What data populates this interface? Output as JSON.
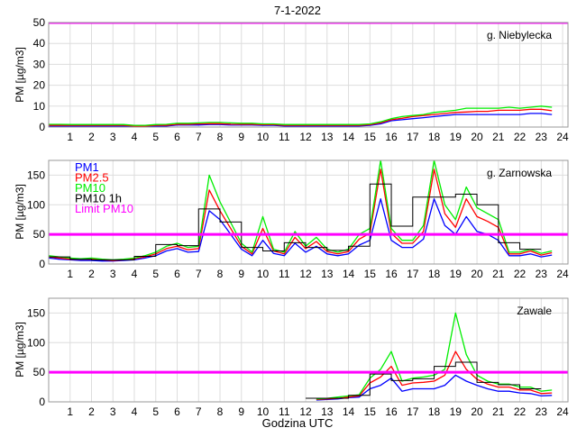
{
  "chart_data": [
    {
      "type": "line",
      "title": "7-1-2022",
      "station": "g. Niebylecka",
      "ylabel": "PM [µg/m3]",
      "xlabel": "",
      "xlim": [
        0,
        24.25
      ],
      "ylim": [
        0,
        50
      ],
      "yticks": [
        0,
        10,
        20,
        30,
        40,
        50
      ],
      "xticks": [
        1,
        2,
        3,
        4,
        5,
        6,
        7,
        8,
        9,
        10,
        11,
        12,
        13,
        14,
        15,
        16,
        17,
        18,
        19,
        20,
        21,
        22,
        23,
        24
      ],
      "grid": true,
      "limit": 50,
      "x_step_hours": 0.5,
      "series": [
        {
          "name": "PM1",
          "color": "#0000ff",
          "values": [
            0.5,
            0.5,
            0.5,
            0.5,
            0.5,
            0.5,
            0.5,
            0.5,
            0.3,
            0.3,
            0.5,
            0.5,
            1,
            1,
            1,
            1.2,
            1.2,
            1,
            1,
            1,
            0.8,
            0.8,
            0.5,
            0.5,
            0.5,
            0.5,
            0.5,
            0.5,
            0.5,
            0.5,
            0.8,
            1.5,
            3,
            3.5,
            4,
            4.5,
            5,
            5.5,
            6,
            6,
            6,
            6,
            6,
            6,
            6,
            6.5,
            6.5,
            6
          ]
        },
        {
          "name": "PM2.5",
          "color": "#ff0000",
          "values": [
            0.8,
            0.8,
            0.8,
            0.8,
            0.8,
            0.8,
            0.8,
            0.8,
            0.5,
            0.5,
            0.8,
            0.8,
            1.3,
            1.3,
            1.5,
            1.6,
            1.6,
            1.4,
            1.3,
            1.3,
            1.1,
            1.1,
            0.8,
            0.8,
            0.8,
            0.8,
            0.8,
            0.8,
            0.8,
            0.8,
            1.1,
            2,
            3.5,
            4.2,
            5,
            5.5,
            6,
            6.5,
            7,
            7.2,
            7.5,
            7.5,
            8,
            8,
            8,
            8.5,
            8.5,
            7.8
          ]
        },
        {
          "name": "PM10",
          "color": "#00ee00",
          "values": [
            1.3,
            1.3,
            1.2,
            1.2,
            1.2,
            1.2,
            1.2,
            1.2,
            0.8,
            0.8,
            1.2,
            1.3,
            1.8,
            1.8,
            2,
            2.2,
            2.2,
            2,
            1.8,
            1.8,
            1.5,
            1.5,
            1.2,
            1.2,
            1.2,
            1.2,
            1.2,
            1.2,
            1.2,
            1.2,
            1.5,
            2.5,
            4,
            5,
            5.5,
            6,
            7,
            7.5,
            8,
            9,
            9,
            9,
            9,
            9.5,
            9,
            9.5,
            10,
            9.5
          ]
        }
      ]
    },
    {
      "type": "line",
      "station": "g. Zarnowska",
      "ylabel": "PM [µg/m3]",
      "xlabel": "",
      "xlim": [
        0,
        24.25
      ],
      "ylim": [
        0,
        175
      ],
      "yticks": [
        0,
        50,
        100,
        150
      ],
      "xticks": [
        1,
        2,
        3,
        4,
        5,
        6,
        7,
        8,
        9,
        10,
        11,
        12,
        13,
        14,
        15,
        16,
        17,
        18,
        19,
        20,
        21,
        22,
        23,
        24
      ],
      "grid": true,
      "limit": 50,
      "x_step_hours": 0.5,
      "legend": {
        "placement": "top-left",
        "entries": [
          {
            "label": "PM1",
            "color": "#0000ff"
          },
          {
            "label": "PM2.5",
            "color": "#ff0000"
          },
          {
            "label": "PM10",
            "color": "#00ee00"
          },
          {
            "label": "PM10 1h",
            "color": "#000000"
          },
          {
            "label": "Limit PM10",
            "color": "#ff00ff"
          }
        ]
      },
      "series": [
        {
          "name": "PM1",
          "color": "#0000ff",
          "values": [
            10,
            8,
            7,
            6,
            6,
            5,
            5,
            6,
            7,
            10,
            14,
            22,
            26,
            20,
            21,
            90,
            75,
            50,
            25,
            14,
            40,
            18,
            14,
            35,
            20,
            30,
            17,
            14,
            17,
            32,
            40,
            110,
            40,
            28,
            28,
            42,
            110,
            65,
            50,
            80,
            55,
            50,
            40,
            14,
            14,
            17,
            12,
            15
          ]
        },
        {
          "name": "PM2.5",
          "color": "#ff0000",
          "values": [
            12,
            10,
            8,
            8,
            8,
            7,
            6,
            7,
            9,
            12,
            17,
            26,
            30,
            24,
            26,
            125,
            90,
            60,
            30,
            17,
            60,
            22,
            17,
            45,
            26,
            38,
            21,
            17,
            21,
            42,
            52,
            160,
            52,
            35,
            35,
            55,
            160,
            85,
            62,
            110,
            80,
            72,
            62,
            17,
            17,
            22,
            15,
            19
          ]
        },
        {
          "name": "PM10",
          "color": "#00ee00",
          "values": [
            14,
            12,
            10,
            9,
            10,
            8,
            7,
            8,
            10,
            14,
            20,
            30,
            35,
            28,
            30,
            150,
            105,
            70,
            35,
            20,
            80,
            25,
            20,
            55,
            30,
            45,
            25,
            20,
            25,
            50,
            60,
            175,
            60,
            40,
            40,
            65,
            175,
            100,
            75,
            130,
            95,
            85,
            75,
            20,
            20,
            25,
            18,
            22
          ]
        }
      ],
      "hourly_pm10": [
        12,
        8,
        7,
        7,
        13,
        33,
        31,
        93,
        71,
        28,
        22,
        36,
        28,
        23,
        30,
        135,
        64,
        113,
        113,
        118,
        100,
        36,
        25,
        null
      ]
    },
    {
      "type": "line",
      "station": "Zawale",
      "ylabel": "PM [µg/m3]",
      "xlabel": "Godzina UTC",
      "xlim": [
        0,
        24.25
      ],
      "ylim": [
        0,
        175
      ],
      "yticks": [
        0,
        50,
        100,
        150
      ],
      "xticks": [
        1,
        2,
        3,
        4,
        5,
        6,
        7,
        8,
        9,
        10,
        11,
        12,
        13,
        14,
        15,
        16,
        17,
        18,
        19,
        20,
        21,
        22,
        23,
        24
      ],
      "grid": true,
      "limit": 50,
      "x_step_hours": 0.5,
      "series": [
        {
          "name": "PM1",
          "color": "#0000ff",
          "values": [
            null,
            null,
            null,
            null,
            null,
            null,
            null,
            null,
            null,
            null,
            null,
            null,
            null,
            null,
            null,
            null,
            null,
            null,
            null,
            null,
            null,
            null,
            null,
            null,
            null,
            3,
            4,
            5,
            7,
            8,
            22,
            28,
            40,
            18,
            22,
            22,
            22,
            28,
            45,
            35,
            28,
            22,
            18,
            18,
            15,
            14,
            10,
            11
          ]
        },
        {
          "name": "PM2.5",
          "color": "#ff0000",
          "values": [
            null,
            null,
            null,
            null,
            null,
            null,
            null,
            null,
            null,
            null,
            null,
            null,
            null,
            null,
            null,
            null,
            null,
            null,
            null,
            null,
            null,
            null,
            null,
            null,
            null,
            4,
            5,
            6,
            8,
            10,
            32,
            42,
            60,
            28,
            32,
            33,
            35,
            45,
            85,
            55,
            38,
            30,
            25,
            25,
            20,
            20,
            14,
            15
          ]
        },
        {
          "name": "PM10",
          "color": "#00ee00",
          "values": [
            null,
            null,
            null,
            null,
            null,
            null,
            null,
            null,
            null,
            null,
            null,
            null,
            null,
            null,
            null,
            null,
            null,
            null,
            null,
            null,
            null,
            null,
            null,
            null,
            null,
            5,
            6,
            8,
            10,
            12,
            40,
            55,
            85,
            35,
            40,
            42,
            45,
            55,
            150,
            80,
            45,
            35,
            30,
            30,
            25,
            25,
            18,
            20
          ]
        }
      ],
      "hourly_pm10": [
        null,
        null,
        null,
        null,
        null,
        null,
        null,
        null,
        null,
        null,
        null,
        null,
        6,
        6,
        11,
        47,
        36,
        39,
        60,
        67,
        33,
        29,
        22,
        null
      ]
    }
  ],
  "colors": {
    "limit": "#ff00ff",
    "hourly": "#000000",
    "grid": "#dddddd",
    "axis": "#999999"
  }
}
